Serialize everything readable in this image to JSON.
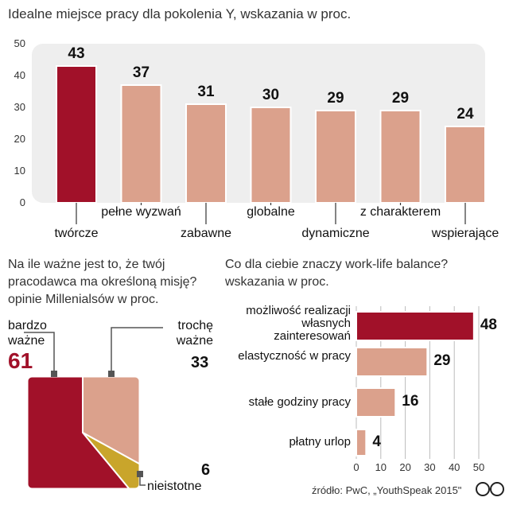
{
  "colors": {
    "accent": "#a11129",
    "light": "#dba18c",
    "gold": "#c9a52b",
    "panel": "#eeeeee"
  },
  "chart_data": [
    {
      "type": "bar",
      "title": "Idealne miejsce pracy dla pokolenia Y, wskazania w proc.",
      "categories": [
        "twórcze",
        "pełne wyzwań",
        "zabawne",
        "globalne",
        "dynamiczne",
        "z charakterem",
        "wspierające"
      ],
      "values": [
        43,
        37,
        31,
        30,
        29,
        29,
        24
      ],
      "yticks": [
        "0",
        "10",
        "20",
        "30",
        "40",
        "50"
      ],
      "ylim": [
        0,
        50
      ],
      "grid": false,
      "highlight_index": 0
    },
    {
      "type": "pie",
      "title": "Na ile ważne jest to, że twój pracodawca ma określoną misję? opinie Millenialsów w proc.",
      "slices": [
        {
          "label": "bardzo ważne",
          "value": 61
        },
        {
          "label": "trochę ważne",
          "value": 33
        },
        {
          "label": "nieistotne",
          "value": 6
        }
      ]
    },
    {
      "type": "bar",
      "orientation": "horizontal",
      "title": "Co dla ciebie znaczy work-life balance? wskazania w proc.",
      "categories": [
        "możliwość realizacji własnych zainteresowań",
        "elastyczność w pracy",
        "stałe godziny pracy",
        "płatny urlop"
      ],
      "values": [
        48,
        29,
        16,
        4
      ],
      "xticks": [
        "0",
        "10",
        "20",
        "30",
        "40",
        "50"
      ],
      "xlim": [
        0,
        50
      ],
      "highlight_index": 0
    }
  ],
  "source": "źródło: PwC, „YouthSpeak 2015\"",
  "logo": "CP"
}
